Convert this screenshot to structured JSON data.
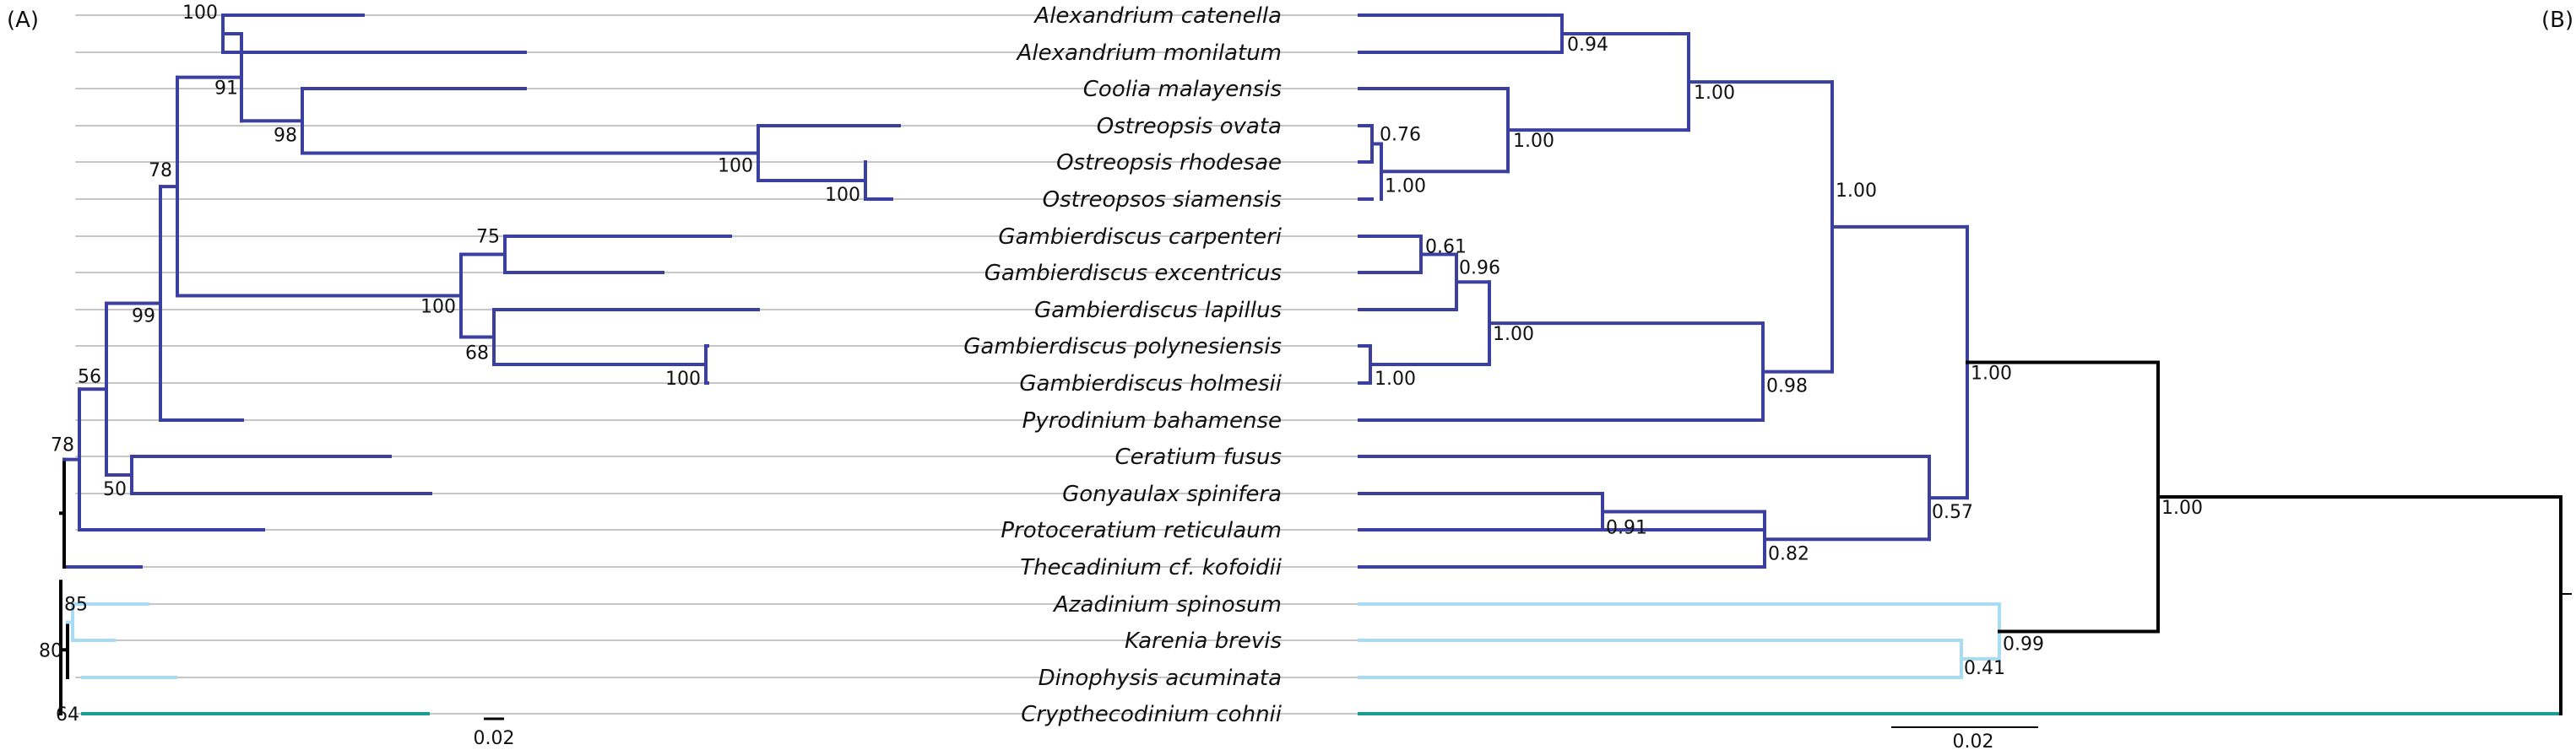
{
  "panels": {
    "left_label": "(A)",
    "right_label": "(B)"
  },
  "colors": {
    "dark_blue_clade": "#3b3fa0",
    "light_blue_clade": "#a8dcf4",
    "teal_outgroup": "#1a9e93",
    "backbone": "#000000",
    "leader_line": "#b4b4b4"
  },
  "taxa": [
    "Alexandrium catenella",
    "Alexandrium monilatum",
    "Coolia malayensis",
    "Ostreopsis ovata",
    "Ostreopsis rhodesae",
    "Ostreopsos siamensis",
    "Gambierdiscus carpenteri",
    "Gambierdiscus excentricus",
    "Gambierdiscus lapillus",
    "Gambierdiscus polynesiensis",
    "Gambierdiscus holmesii",
    "Pyrodinium bahamense",
    "Ceratium fusus",
    "Gonyaulax spinifera",
    "Protoceratium reticulaum",
    "Thecadinium cf. kofoidii",
    "Azadinium spinosum",
    "Karenia brevis",
    "Dinophysis acuminata",
    "Crypthecodinium cohnii"
  ],
  "tree_a_support": {
    "alexandrium": "100",
    "alex_coolia_ostreopsis": "91",
    "coolia_ostreopsis": "98",
    "ostreopsis": "100",
    "ostreopsis_rhodesae_siamensis": "100",
    "gonyaulacales_main": "78",
    "gambierdiscus_carp_exc": "75",
    "gambierdiscus": "100",
    "gambierdiscus_lap_pol_hol": "68",
    "gambierdiscus_pol_hol": "100",
    "main_with_pyrodinium": "99",
    "with_ceratium_gonyaulax": "56",
    "ceratium_gonyaulax": "50",
    "with_protoceratium": "78",
    "azadinium_karenia": "85",
    "with_dinophysis": "80",
    "root": "64"
  },
  "tree_b_support": {
    "alexandrium": "0.94",
    "alex_coolia_ostreopsis": "1.00",
    "ostreopsis_ovata_rhodesae": "0.76",
    "ostreopsis": "1.00",
    "coolia_ostreopsis": "1.00",
    "gambierdiscus_carp_exc": "0.61",
    "gambierdiscus_carp_exc_lap": "0.96",
    "gambierdiscus_pol_hol": "1.00",
    "gambierdiscus": "1.00",
    "gambierdiscus_pyrodinium": "0.98",
    "upper_clade": "1.00",
    "dinoflagellate_main": "1.00",
    "gonyaulax_protoceratium": "0.91",
    "with_thecadinium": "0.82",
    "ceratium_group": "0.57",
    "karenia_dinophysis": "0.41",
    "with_azadinium": "0.99",
    "ingroup": "1.00"
  },
  "scale_bars": {
    "left_label": "0.02",
    "right_label": "0.02"
  }
}
